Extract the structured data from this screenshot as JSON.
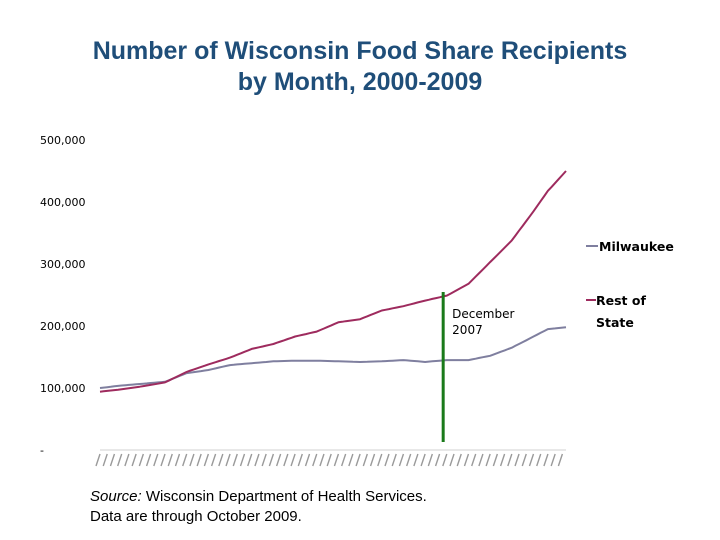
{
  "title_line1": "Number of Wisconsin Food Share Recipients",
  "title_line2": "by Month, 2000-2009",
  "source_label": "Source:",
  "source_text": " Wisconsin Department of Health Services.",
  "source_line2": "Data are through October 2009.",
  "annotation": {
    "line1": "December",
    "line2": "2007",
    "at_index": 95,
    "color": "#1a7a1a"
  },
  "colors": {
    "milwaukee": "#7f7f9f",
    "rest_of_state": "#9e2b5e"
  },
  "chart_data": {
    "type": "line",
    "title": "Number of Wisconsin Food Share Recipients by Month, 2000-2009",
    "ylim": [
      0,
      500000
    ],
    "yticks": [
      0,
      100000,
      200000,
      300000,
      400000,
      500000
    ],
    "ytick_labels": [
      "-",
      "100,000",
      "200,000",
      "300,000",
      "400,000",
      "500,000"
    ],
    "legend_position": "right",
    "grid": false,
    "series": [
      {
        "name": "Milwaukee",
        "key": [
          [
            0,
            100000
          ],
          [
            6,
            104000
          ],
          [
            12,
            107000
          ],
          [
            18,
            110000
          ],
          [
            24,
            124000
          ],
          [
            30,
            129000
          ],
          [
            36,
            137000
          ],
          [
            42,
            140000
          ],
          [
            48,
            143000
          ],
          [
            54,
            144000
          ],
          [
            60,
            144000
          ],
          [
            66,
            143000
          ],
          [
            72,
            142000
          ],
          [
            78,
            143000
          ],
          [
            84,
            145000
          ],
          [
            90,
            142000
          ],
          [
            96,
            145000
          ],
          [
            102,
            145000
          ],
          [
            108,
            152000
          ],
          [
            114,
            165000
          ],
          [
            120,
            183000
          ],
          [
            124,
            195000
          ],
          [
            129,
            198000
          ]
        ]
      },
      {
        "name": "Rest of State",
        "key": [
          [
            0,
            94000
          ],
          [
            6,
            98000
          ],
          [
            12,
            103000
          ],
          [
            18,
            109000
          ],
          [
            24,
            126000
          ],
          [
            30,
            138000
          ],
          [
            36,
            149000
          ],
          [
            42,
            163000
          ],
          [
            48,
            171000
          ],
          [
            54,
            183000
          ],
          [
            60,
            191000
          ],
          [
            66,
            206000
          ],
          [
            72,
            211000
          ],
          [
            78,
            225000
          ],
          [
            84,
            232000
          ],
          [
            90,
            241000
          ],
          [
            96,
            249000
          ],
          [
            102,
            268000
          ],
          [
            108,
            303000
          ],
          [
            114,
            338000
          ],
          [
            120,
            385000
          ],
          [
            124,
            418000
          ],
          [
            129,
            450000
          ]
        ]
      }
    ]
  }
}
